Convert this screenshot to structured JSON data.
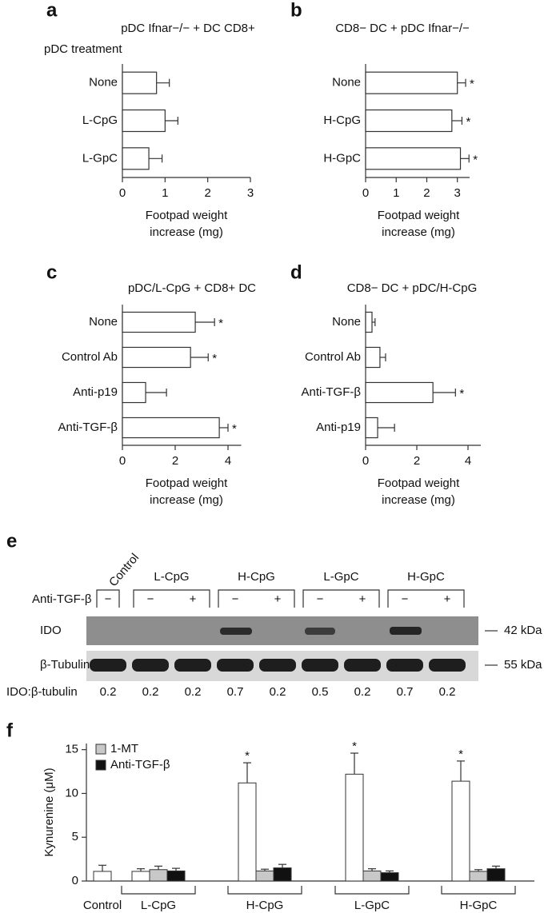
{
  "chart_data": [
    {
      "type": "bar",
      "orientation": "horizontal",
      "panel": "a",
      "title": "pDC Ifnar−/− + DC CD8+",
      "subtitle": "pDC treatment",
      "categories": [
        "None",
        "L-CpG",
        "L-GpC"
      ],
      "values": [
        0.8,
        1.0,
        0.62
      ],
      "errors": [
        0.3,
        0.3,
        0.31
      ],
      "xlabel": [
        "Footpad weight",
        "increase (mg)"
      ],
      "xlim": [
        0,
        3
      ],
      "xticks": [
        0,
        1,
        2,
        3
      ],
      "color": "#ffffff"
    },
    {
      "type": "bar",
      "orientation": "horizontal",
      "panel": "b",
      "title": "CD8− DC + pDC Ifnar−/−",
      "categories": [
        "None",
        "H-CpG",
        "H-GpC"
      ],
      "values": [
        3.0,
        2.82,
        3.1
      ],
      "errors": [
        0.27,
        0.33,
        0.28
      ],
      "markers": [
        "*",
        "*",
        "*"
      ],
      "xlabel": [
        "Footpad weight",
        "increase (mg)"
      ],
      "xlim": [
        0,
        3.4
      ],
      "xticks": [
        0,
        1,
        2,
        3
      ],
      "color": "#ffffff"
    },
    {
      "type": "bar",
      "orientation": "horizontal",
      "panel": "c",
      "title": "pDC/L-CpG + CD8+ DC",
      "categories": [
        "None",
        "Control Ab",
        "Anti-p19",
        "Anti-TGF-β"
      ],
      "values": [
        2.76,
        2.58,
        0.88,
        3.67
      ],
      "errors": [
        0.73,
        0.67,
        0.79,
        0.33
      ],
      "markers": [
        "*",
        "*",
        null,
        "*"
      ],
      "xlabel": [
        "Footpad weight",
        "increase (mg)"
      ],
      "xlim": [
        0,
        4.5
      ],
      "xticks": [
        0,
        2,
        4
      ],
      "color": "#ffffff"
    },
    {
      "type": "bar",
      "orientation": "horizontal",
      "panel": "d",
      "title": "CD8− DC + pDC/H-CpG",
      "categories": [
        "None",
        "Control Ab",
        "Anti-TGF-β",
        "Anti-p19"
      ],
      "values": [
        0.25,
        0.56,
        2.63,
        0.47
      ],
      "errors": [
        0.12,
        0.22,
        0.88,
        0.66
      ],
      "markers": [
        null,
        null,
        "*",
        null
      ],
      "xlabel": [
        "Footpad weight",
        "increase (mg)"
      ],
      "xlim": [
        0,
        4.5
      ],
      "xticks": [
        0,
        2,
        4
      ],
      "color": "#ffffff"
    },
    {
      "type": "bar",
      "orientation": "vertical",
      "panel": "f",
      "ylabel": "Kynurenine (μM)",
      "categories": [
        "Control",
        "L-CpG",
        "H-CpG",
        "L-GpC",
        "H-GpC"
      ],
      "series": [
        {
          "color": "#ffffff",
          "values": [
            1.1,
            1.1,
            11.2,
            12.2,
            11.4
          ],
          "errors": [
            0.7,
            0.3,
            2.3,
            2.4,
            2.3
          ],
          "markers": [
            null,
            null,
            "*",
            "*",
            "*"
          ]
        },
        {
          "name": "1-MT",
          "color": "#c8c8c8",
          "values": [
            null,
            1.3,
            1.15,
            1.15,
            1.1
          ],
          "errors": [
            null,
            0.4,
            0.2,
            0.25,
            0.2
          ]
        },
        {
          "name": "Anti-TGF-β",
          "color": "#111111",
          "values": [
            null,
            1.15,
            1.5,
            0.95,
            1.4
          ],
          "errors": [
            null,
            0.3,
            0.4,
            0.2,
            0.3
          ]
        }
      ],
      "ylim": [
        0,
        15.7
      ],
      "yticks": [
        0,
        5,
        10,
        15
      ]
    }
  ],
  "blot": {
    "panel": "e",
    "groups": [
      "Control",
      "L-CpG",
      "H-CpG",
      "L-GpC",
      "H-GpC"
    ],
    "treatment_label": "Anti-TGF-β",
    "signs": [
      "−",
      "−",
      "+",
      "−",
      "+",
      "−",
      "+",
      "−",
      "+"
    ],
    "rows": [
      "IDO",
      "β-Tubulin"
    ],
    "sizes": [
      "42 kDa",
      "55 kDa"
    ],
    "ratio_label": "IDO:β-tubulin",
    "ratios": [
      0.2,
      0.2,
      0.2,
      0.7,
      0.2,
      0.5,
      0.2,
      0.7,
      0.2
    ]
  }
}
